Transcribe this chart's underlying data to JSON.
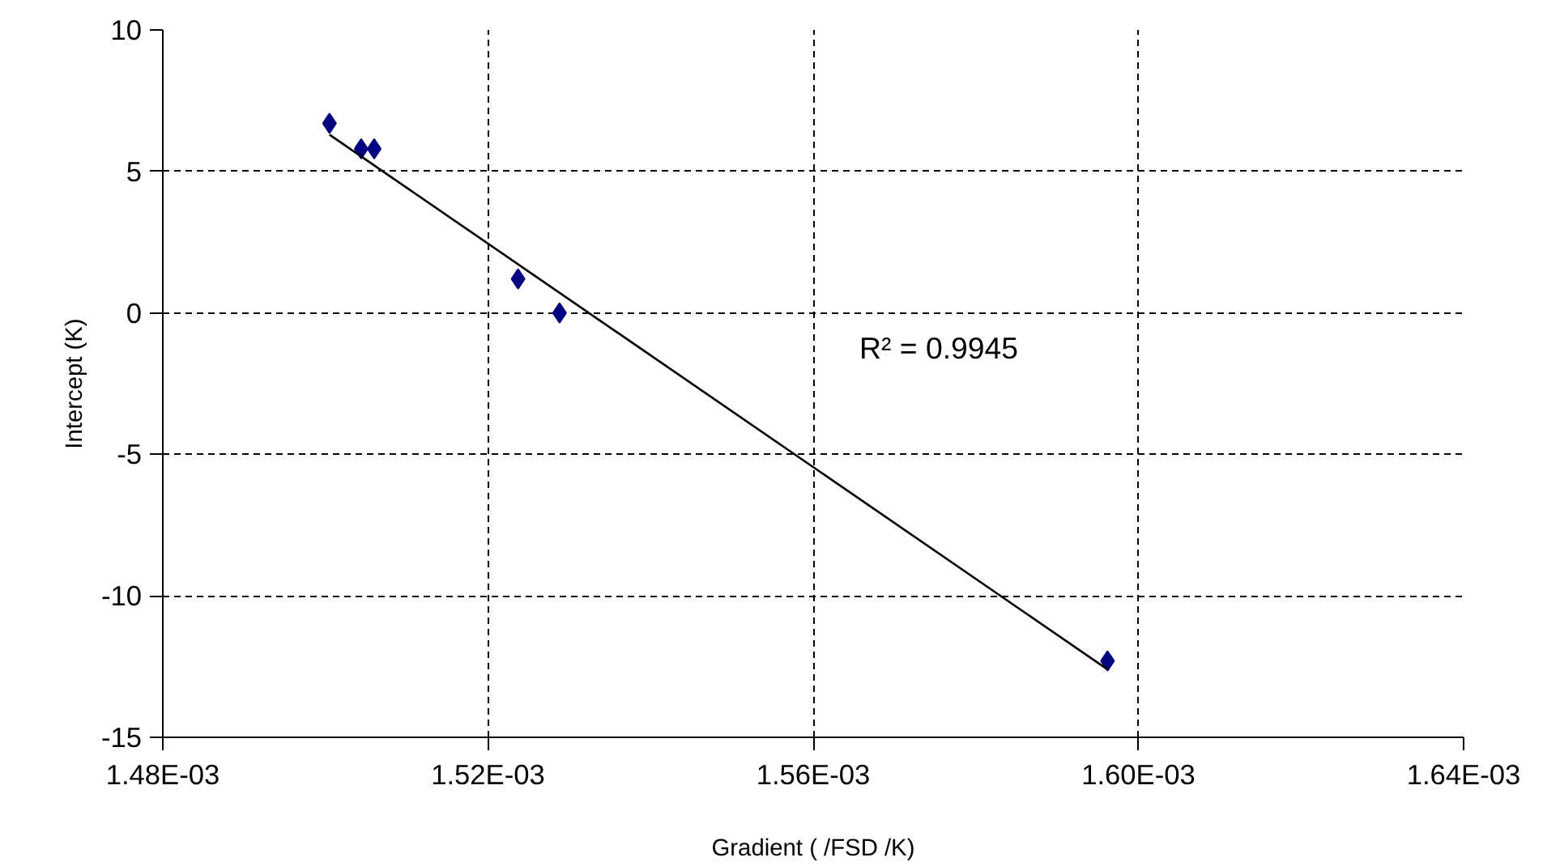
{
  "chart_data": {
    "type": "scatter",
    "xlabel": "Gradient ( /FSD /K)",
    "ylabel": "Intercept (K)",
    "series": [
      {
        "color": "#000080",
        "marker": "diamond",
        "x": [
          0.0015005,
          0.0015044,
          0.001506,
          0.0015237,
          0.0015288,
          0.0015962
        ],
        "values": [
          6.7,
          5.8,
          5.8,
          1.2,
          0.0,
          -12.3
        ]
      },
      {
        "type": "line",
        "color": "#000000",
        "marker": "none",
        "x": [
          0.0015005,
          0.0015962
        ],
        "values": [
          6.3,
          -12.6
        ]
      }
    ],
    "annotations": [
      "R² = 0.9945"
    ],
    "xlim": [
      0.00148,
      0.00164
    ],
    "xticks": [
      {
        "value": 0.00148,
        "label": "1.48E-03"
      },
      {
        "value": 0.00152,
        "label": "1.52E-03"
      },
      {
        "value": 0.00156,
        "label": "1.56E-03"
      },
      {
        "value": 0.0016,
        "label": "1.60E-03"
      },
      {
        "value": 0.00164,
        "label": "1.64E-03"
      }
    ],
    "ylim": [
      -15,
      10
    ],
    "yticks": [
      -15,
      -10,
      -5,
      0,
      5,
      10
    ],
    "grid": true
  }
}
